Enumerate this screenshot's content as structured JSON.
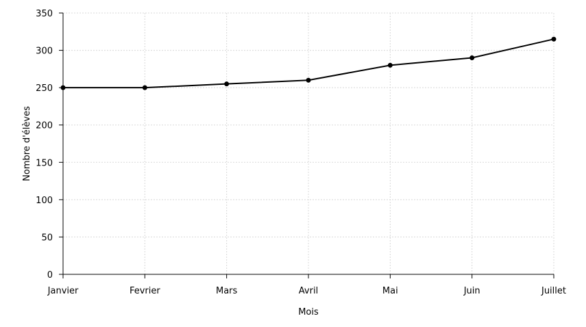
{
  "chart_data": {
    "type": "line",
    "x": [
      "Janvier",
      "Fevrier",
      "Mars",
      "Avril",
      "Mai",
      "Juin",
      "Juillet"
    ],
    "series": [
      {
        "values": [
          250,
          250,
          255,
          260,
          280,
          290,
          315
        ]
      }
    ],
    "xlabel": "Mois",
    "ylabel": "Nombre d'élèves",
    "ylim": [
      0,
      350
    ],
    "yticks": [
      "0",
      "50",
      "100",
      "150",
      "200",
      "250",
      "300",
      "350"
    ],
    "grid": true,
    "line_color": "#000000",
    "grid_color": "#d8d8d8"
  }
}
